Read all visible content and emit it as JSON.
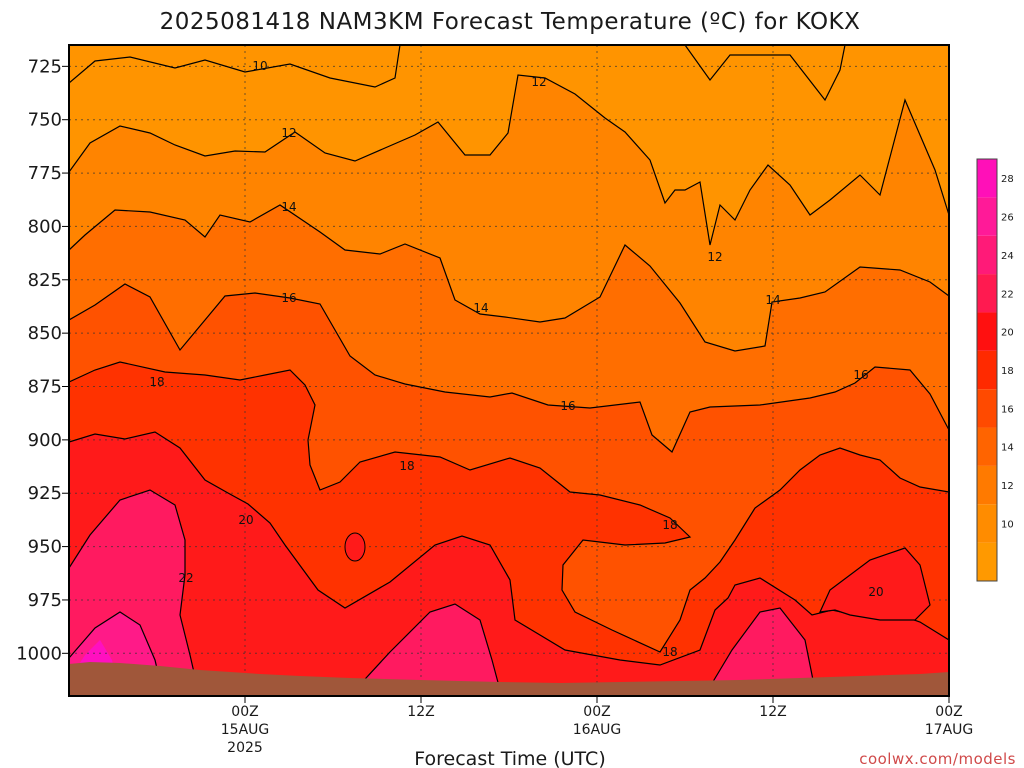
{
  "chart_data": {
    "type": "heatmap",
    "title": "2025081418 NAM3KM Forecast Temperature (ºC) for KOKX",
    "xlabel": "Forecast Time (UTC)",
    "ylabel": "",
    "credit": "coolwx.com/models",
    "y_axis": {
      "unit": "hPa",
      "reversed": true,
      "range": [
        1020,
        715
      ],
      "ticks": [
        "725",
        "750",
        "775",
        "800",
        "825",
        "850",
        "875",
        "900",
        "925",
        "950",
        "975",
        "1000"
      ]
    },
    "x_axis": {
      "range_hours": [
        -10,
        40
      ],
      "ticks": [
        {
          "hour": 0,
          "lines": [
            "00Z",
            "15AUG",
            "2025"
          ]
        },
        {
          "hour": 10,
          "lines": [
            "12Z"
          ]
        },
        {
          "hour": 20,
          "lines": [
            "00Z",
            "16AUG"
          ]
        },
        {
          "hour": 30,
          "lines": [
            "12Z"
          ]
        },
        {
          "hour": 40,
          "lines": [
            "00Z",
            "17AUG"
          ]
        }
      ]
    },
    "grid": true,
    "colorbar": {
      "position": "right",
      "levels": [
        8,
        10,
        12,
        14,
        16,
        18,
        20,
        22,
        24,
        26,
        28,
        30
      ],
      "colors": [
        "#ff9900",
        "#ff8c00",
        "#ff7a00",
        "#ff6400",
        "#ff4a00",
        "#ff2a00",
        "#ff1010",
        "#ff1a50",
        "#ff1a78",
        "#ff1a98",
        "#ff10b8",
        "#ff00dd"
      ],
      "tick_labels": [
        "10",
        "12",
        "14",
        "16",
        "18",
        "20",
        "22",
        "24",
        "26",
        "28"
      ]
    },
    "isotherms": [
      {
        "label": "10",
        "value": 10
      },
      {
        "label": "12",
        "value": 12
      },
      {
        "label": "14",
        "value": 14
      },
      {
        "label": "16",
        "value": 16
      },
      {
        "label": "18",
        "value": 18
      },
      {
        "label": "20",
        "value": 20
      },
      {
        "label": "22",
        "value": 22
      }
    ],
    "ground_color": "#a0573a"
  }
}
